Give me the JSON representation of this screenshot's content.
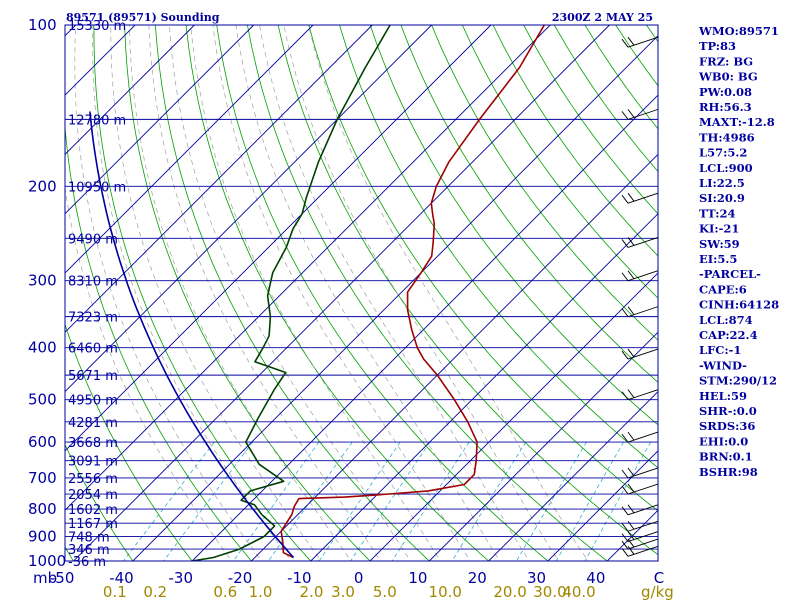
{
  "title_left": "89571 (89571) Sounding",
  "title_right": "2300Z  2 MAY 25",
  "units_mb": "mb",
  "units_mixing": "g/kg",
  "colors": {
    "frame": "#0000a0",
    "isobar": "#0000a0",
    "isotherm": "#0000a0",
    "dry_adiabat": "#00a000",
    "moist_adiabat": "#a0a0a0",
    "mixing_ratio": "#30b0d0",
    "temperature": "#a00000",
    "dewpoint": "#004000",
    "virtual_temp": "#0000a0",
    "index_text": "#0000a0",
    "mixing_labels": "#a08800"
  },
  "chart_data": {
    "type": "skew-t",
    "pressure_levels": [
      100,
      200,
      300,
      400,
      500,
      600,
      700,
      800,
      900,
      1000
    ],
    "temperature_ticks": [
      -50,
      -40,
      -30,
      -20,
      -10,
      0,
      10,
      20,
      30,
      40
    ],
    "temperature_end_label": "C",
    "mixing_ratio_ticks": [
      "0.1",
      "0.2",
      "0.6",
      "1.0",
      "2.0",
      "3.0",
      "5.0",
      "10.0",
      "20.0",
      "30.0",
      "40.0"
    ],
    "mixing_ratio_values": [
      0.1,
      0.2,
      0.6,
      1.0,
      2.0,
      3.0,
      5.0,
      10.0,
      20.0,
      30.0,
      40.0
    ],
    "heights": [
      {
        "label": "15330 m",
        "p": 100
      },
      {
        "label": "12780 m",
        "p": 150
      },
      {
        "label": "10950 m",
        "p": 200
      },
      {
        "label": "9490 m",
        "p": 250
      },
      {
        "label": "8310 m",
        "p": 300
      },
      {
        "label": "7323 m",
        "p": 350
      },
      {
        "label": "6460 m",
        "p": 400
      },
      {
        "label": "5671 m",
        "p": 450
      },
      {
        "label": "4950 m",
        "p": 500
      },
      {
        "label": "4281 m",
        "p": 550
      },
      {
        "label": "3668 m",
        "p": 600
      },
      {
        "label": "3091 m",
        "p": 650
      },
      {
        "label": "2556 m",
        "p": 700
      },
      {
        "label": "2054 m",
        "p": 750
      },
      {
        "label": "1602 m",
        "p": 800
      },
      {
        "label": "1167 m",
        "p": 850
      },
      {
        "label": "748 m",
        "p": 900
      },
      {
        "label": "346 m",
        "p": 950
      },
      {
        "label": "-36 m",
        "p": 1000
      }
    ],
    "temperature_profile": [
      {
        "p": 985,
        "t": -13.5
      },
      {
        "p": 965,
        "t": -16
      },
      {
        "p": 920,
        "t": -18
      },
      {
        "p": 880,
        "t": -20
      },
      {
        "p": 820,
        "t": -21
      },
      {
        "p": 790,
        "t": -22
      },
      {
        "p": 765,
        "t": -22.5
      },
      {
        "p": 760,
        "t": -15
      },
      {
        "p": 750,
        "t": -8
      },
      {
        "p": 740,
        "t": -2
      },
      {
        "p": 720,
        "t": 3
      },
      {
        "p": 690,
        "t": 3
      },
      {
        "p": 650,
        "t": 1
      },
      {
        "p": 600,
        "t": -2
      },
      {
        "p": 550,
        "t": -7
      },
      {
        "p": 500,
        "t": -13
      },
      {
        "p": 450,
        "t": -20
      },
      {
        "p": 420,
        "t": -25
      },
      {
        "p": 400,
        "t": -28
      },
      {
        "p": 370,
        "t": -32
      },
      {
        "p": 340,
        "t": -36
      },
      {
        "p": 315,
        "t": -39
      },
      {
        "p": 290,
        "t": -40
      },
      {
        "p": 270,
        "t": -41
      },
      {
        "p": 255,
        "t": -43
      },
      {
        "p": 235,
        "t": -46
      },
      {
        "p": 225,
        "t": -48
      },
      {
        "p": 215,
        "t": -50
      },
      {
        "p": 200,
        "t": -52
      },
      {
        "p": 180,
        "t": -54
      },
      {
        "p": 150,
        "t": -56
      },
      {
        "p": 120,
        "t": -58
      },
      {
        "p": 100,
        "t": -61
      }
    ],
    "dewpoint_profile": [
      {
        "p": 1000,
        "t": -30
      },
      {
        "p": 985,
        "t": -27
      },
      {
        "p": 950,
        "t": -24
      },
      {
        "p": 900,
        "t": -22
      },
      {
        "p": 860,
        "t": -22
      },
      {
        "p": 820,
        "t": -26
      },
      {
        "p": 785,
        "t": -29
      },
      {
        "p": 770,
        "t": -32
      },
      {
        "p": 740,
        "t": -32
      },
      {
        "p": 710,
        "t": -28
      },
      {
        "p": 660,
        "t": -35
      },
      {
        "p": 600,
        "t": -41
      },
      {
        "p": 540,
        "t": -43
      },
      {
        "p": 480,
        "t": -45
      },
      {
        "p": 445,
        "t": -46
      },
      {
        "p": 425,
        "t": -53
      },
      {
        "p": 400,
        "t": -54
      },
      {
        "p": 380,
        "t": -55
      },
      {
        "p": 350,
        "t": -58
      },
      {
        "p": 320,
        "t": -62
      },
      {
        "p": 290,
        "t": -65
      },
      {
        "p": 260,
        "t": -67
      },
      {
        "p": 240,
        "t": -69
      },
      {
        "p": 225,
        "t": -70
      },
      {
        "p": 210,
        "t": -72
      },
      {
        "p": 180,
        "t": -76
      },
      {
        "p": 150,
        "t": -80
      },
      {
        "p": 120,
        "t": -84
      },
      {
        "p": 100,
        "t": -87
      }
    ],
    "wind_pressures": [
      980,
      950,
      920,
      880,
      820,
      750,
      700,
      600,
      500,
      420,
      350,
      300,
      260,
      215,
      150,
      110
    ],
    "indices": [
      "WMO:89571",
      "TP:83",
      "FRZ: BG",
      "WB0: BG",
      "PW:0.08",
      "RH:56.3",
      "MAXT:-12.8",
      "TH:4986",
      "L57:5.2",
      "LCL:900",
      "LI:22.5",
      "SI:20.9",
      "TT:24",
      "KI:-21",
      "SW:59",
      "EI:5.5",
      "-PARCEL-",
      "CAPE:6",
      "CINH:64128",
      "LCL:874",
      "CAP:22.4",
      "LFC:-1",
      "-WIND-",
      "STM:290/12",
      "HEL:59",
      "SHR-:0.0",
      "SRDS:36",
      "EHI:0.0",
      "BRN:0.1",
      "BSHR:98"
    ]
  }
}
